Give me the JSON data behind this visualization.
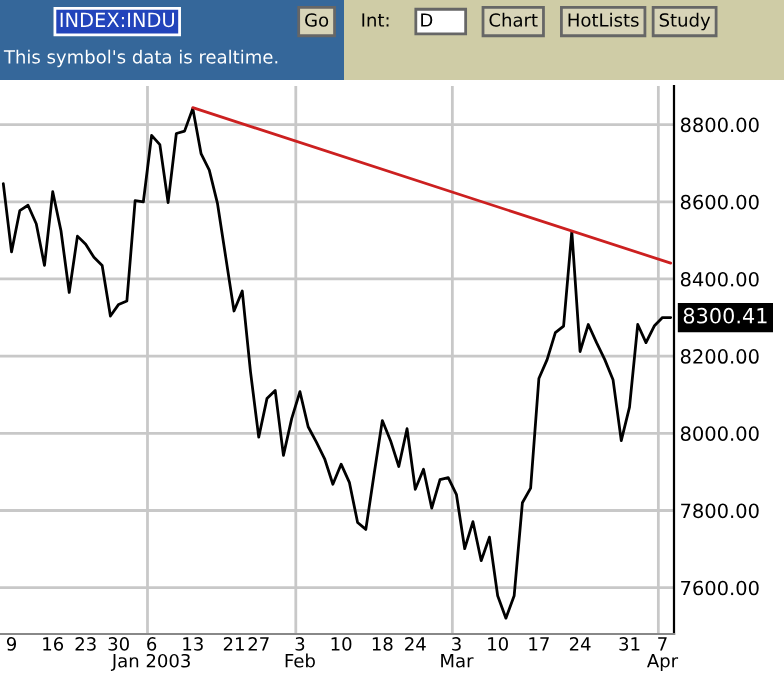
{
  "chart_data": {
    "type": "line",
    "categories": [
      null,
      "9",
      null,
      null,
      null,
      null,
      "16",
      null,
      null,
      null,
      "23",
      null,
      null,
      null,
      "30",
      null,
      null,
      null,
      "6\nJan 2003",
      null,
      null,
      null,
      null,
      "13",
      null,
      null,
      null,
      null,
      "21",
      null,
      null,
      "27",
      null,
      null,
      null,
      null,
      "3\nFeb",
      null,
      null,
      null,
      null,
      "10",
      null,
      null,
      null,
      null,
      "18",
      null,
      null,
      null,
      "24",
      null,
      null,
      null,
      null,
      "3\nMar",
      null,
      null,
      null,
      null,
      "10",
      null,
      null,
      null,
      null,
      "17",
      null,
      null,
      null,
      null,
      "24",
      null,
      null,
      null,
      null,
      null,
      "31",
      null,
      null,
      null,
      "7\nApr",
      null
    ],
    "series": [
      {
        "color": "#000000",
        "values": [
          8647,
          8470,
          8577,
          8591,
          8543,
          8435,
          8626,
          8525,
          8365,
          8511,
          8490,
          8456,
          8435,
          8304,
          8334,
          8343,
          8603,
          8600,
          8772,
          8748,
          8598,
          8777,
          8783,
          8842,
          8725,
          8682,
          8595,
          8456,
          8317,
          8369,
          8160,
          7990,
          8090,
          8111,
          7943,
          8038,
          8108,
          8017,
          7977,
          7934,
          7868,
          7920,
          7873,
          7769,
          7751,
          7894,
          8033,
          7981,
          7914,
          8012,
          7855,
          7907,
          7806,
          7880,
          7885,
          7841,
          7701,
          7771,
          7670,
          7731,
          7579,
          7521,
          7579,
          7820,
          7858,
          8142,
          8191,
          8261,
          8278,
          8523,
          8212,
          8282,
          8235,
          8191,
          8139,
          7981,
          8068,
          8282,
          8235,
          8278,
          8300,
          8300
        ]
      },
      {
        "type": "line",
        "color": "#cc2020",
        "values": [
          null,
          null,
          null,
          null,
          null,
          null,
          null,
          null,
          null,
          null,
          null,
          null,
          null,
          null,
          null,
          null,
          null,
          null,
          null,
          null,
          null,
          null,
          null,
          8844,
          null,
          null,
          null,
          null,
          null,
          null,
          null,
          null,
          null,
          null,
          null,
          null,
          null,
          null,
          null,
          null,
          null,
          null,
          null,
          null,
          null,
          null,
          null,
          null,
          null,
          null,
          null,
          null,
          null,
          null,
          null,
          null,
          null,
          null,
          null,
          null,
          null,
          null,
          null,
          null,
          null,
          null,
          null,
          null,
          null,
          null,
          null,
          null,
          null,
          null,
          null,
          null,
          null,
          null,
          null,
          null,
          null,
          8441
        ]
      }
    ],
    "ylim": [
      7480,
      8900
    ],
    "yticks": [
      {
        "value": 7600,
        "label": "7600.00"
      },
      {
        "value": 7800,
        "label": "7800.00"
      },
      {
        "value": 8000,
        "label": "8000.00"
      },
      {
        "value": 8200,
        "label": "8200.00"
      },
      {
        "value": 8400,
        "label": "8400.00"
      },
      {
        "value": 8600,
        "label": "8600.00"
      },
      {
        "value": 8800,
        "label": "8800.00"
      }
    ],
    "grid": true,
    "legend": false,
    "annotations": [
      "8300.41",
      "INDEX:INDU",
      "Go",
      "This symbol's data is realtime.",
      "Int:",
      "D",
      "Chart",
      "HotLists",
      "Study"
    ]
  }
}
